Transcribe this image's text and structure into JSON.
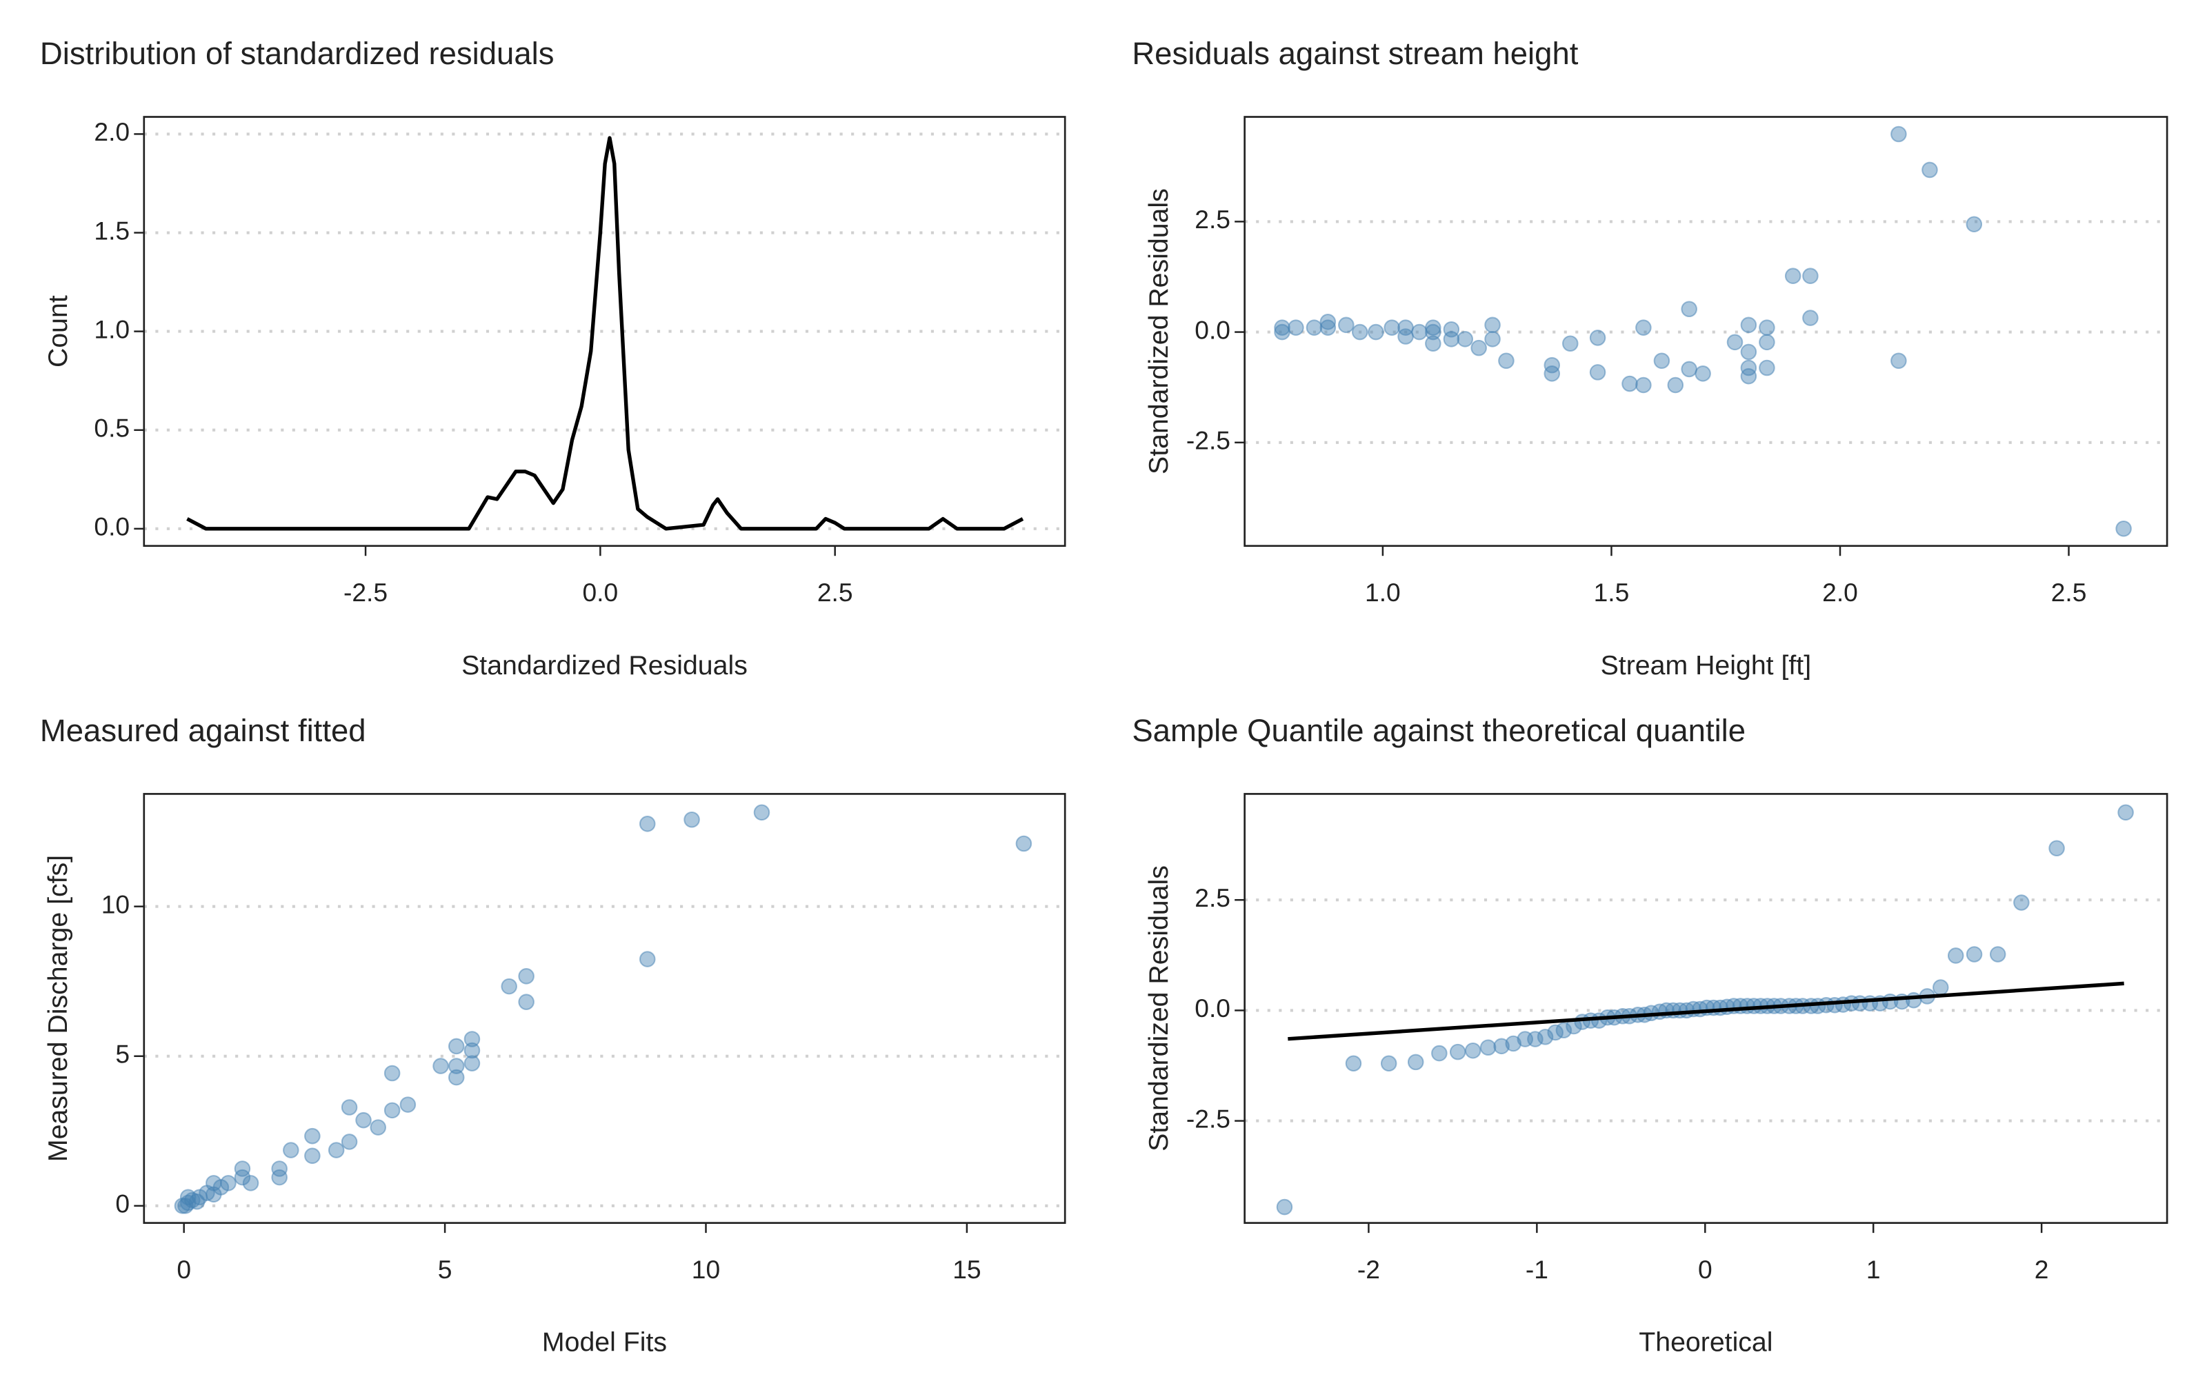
{
  "chart_data": [
    {
      "type": "line",
      "title": "Distribution of standardized residuals",
      "xlabel": "Standardized Residuals",
      "ylabel": "Count",
      "color": "#000000",
      "grid": true,
      "xlim": [
        -4.86,
        4.95
      ],
      "ylim": [
        -0.087,
        2.087
      ],
      "xticks": [
        -2.5,
        {
          "value": 0,
          "label": "0.0"
        },
        2.5
      ],
      "yticks": [
        {
          "value": 0,
          "label": "0.0"
        },
        0.5,
        {
          "value": 1,
          "label": "1.0"
        },
        1.5,
        {
          "value": 2,
          "label": "2.0"
        }
      ],
      "x": [
        -4.4,
        -4.2,
        -4.0,
        -1.4,
        -1.3,
        -1.2,
        -1.1,
        -1.0,
        -0.9,
        -0.8,
        -0.7,
        -0.6,
        -0.5,
        -0.4,
        -0.3,
        -0.2,
        -0.1,
        0.0,
        0.05,
        0.1,
        0.15,
        0.2,
        0.3,
        0.4,
        0.5,
        0.6,
        0.7,
        1.1,
        1.2,
        1.25,
        1.35,
        1.5,
        2.3,
        2.4,
        2.5,
        2.6,
        3.5,
        3.65,
        3.8,
        4.3,
        4.5
      ],
      "y": [
        0.05,
        0.0,
        0.0,
        0.0,
        0.08,
        0.16,
        0.15,
        0.22,
        0.29,
        0.29,
        0.27,
        0.2,
        0.13,
        0.2,
        0.45,
        0.62,
        0.9,
        1.5,
        1.85,
        1.98,
        1.85,
        1.3,
        0.4,
        0.1,
        0.06,
        0.03,
        0.0,
        0.02,
        0.12,
        0.15,
        0.08,
        0.0,
        0.0,
        0.05,
        0.03,
        0.0,
        0.0,
        0.05,
        0.0,
        0.0,
        0.05
      ]
    },
    {
      "type": "scatter",
      "title": "Residuals against stream height",
      "xlabel": "Stream Height [ft]",
      "ylabel": "Standardized Residuals",
      "color": "#4682b4",
      "grid": true,
      "xlim": [
        0.698,
        2.715
      ],
      "ylim": [
        -4.84,
        4.87
      ],
      "xticks": [
        {
          "value": 1,
          "label": "1.0"
        },
        1.5,
        {
          "value": 2,
          "label": "2.0"
        },
        2.5
      ],
      "yticks": [
        -2.5,
        {
          "value": 0,
          "label": "0.0"
        },
        2.5
      ],
      "x": [
        2.128,
        2.196,
        2.293,
        2.62,
        2.128,
        1.935,
        1.897,
        1.935,
        1.8,
        1.84,
        1.8,
        1.84,
        1.8,
        1.8,
        1.84,
        1.77,
        1.67,
        1.67,
        1.7,
        1.64,
        1.61,
        1.57,
        1.54,
        1.57,
        1.47,
        1.47,
        1.41,
        1.37,
        1.37,
        1.27,
        1.24,
        1.24,
        1.21,
        1.18,
        1.15,
        1.15,
        1.11,
        1.11,
        1.11,
        1.08,
        1.05,
        1.05,
        1.02,
        0.985,
        0.95,
        0.92,
        0.88,
        0.88,
        0.85,
        0.81,
        0.78,
        0.78
      ],
      "y": [
        4.48,
        3.67,
        2.44,
        -4.45,
        -0.65,
        0.32,
        1.27,
        1.27,
        0.16,
        0.1,
        -0.45,
        -0.23,
        -0.81,
        -1.0,
        -0.81,
        -0.23,
        0.52,
        -0.84,
        -0.94,
        -1.2,
        -0.65,
        -1.2,
        -1.17,
        0.1,
        -0.13,
        -0.91,
        -0.26,
        -0.75,
        -0.94,
        -0.65,
        0.16,
        -0.16,
        -0.36,
        -0.16,
        0.06,
        -0.16,
        0.1,
        -0.26,
        0.0,
        0.0,
        -0.1,
        0.1,
        0.1,
        0.0,
        0.0,
        0.16,
        0.1,
        0.23,
        0.1,
        0.1,
        0.1,
        0.0
      ]
    },
    {
      "type": "scatter",
      "title": "Measured against fitted",
      "xlabel": "Model Fits",
      "ylabel": "Measured Discharge [cfs]",
      "color": "#4682b4",
      "grid": true,
      "xlim": [
        -0.765,
        16.88
      ],
      "ylim": [
        -0.571,
        13.76
      ],
      "xticks": [
        0,
        5,
        10,
        15
      ],
      "yticks": [
        0,
        5,
        10
      ],
      "x": [
        8.88,
        9.73,
        11.07,
        16.09,
        8.88,
        6.56,
        6.56,
        6.23,
        5.52,
        5.52,
        5.52,
        5.22,
        5.22,
        5.22,
        4.92,
        4.29,
        3.99,
        3.99,
        3.72,
        3.44,
        3.17,
        3.17,
        2.92,
        2.46,
        2.46,
        2.05,
        1.83,
        1.83,
        1.28,
        1.12,
        1.12,
        0.85,
        0.71,
        0.57,
        0.57,
        0.44,
        0.3,
        0.16,
        0.08,
        0.03,
        -0.03,
        0.08,
        0.25
      ],
      "y": [
        12.76,
        12.9,
        13.14,
        12.1,
        8.24,
        7.67,
        6.81,
        7.33,
        5.57,
        5.19,
        4.76,
        5.33,
        4.67,
        4.29,
        4.67,
        3.38,
        4.43,
        3.19,
        2.62,
        2.86,
        3.29,
        2.14,
        1.86,
        2.33,
        1.67,
        1.86,
        1.24,
        0.95,
        0.76,
        1.24,
        0.95,
        0.76,
        0.62,
        0.76,
        0.38,
        0.43,
        0.29,
        0.19,
        0.1,
        0.0,
        0.0,
        0.29,
        0.14
      ]
    },
    {
      "type": "scatter",
      "title": "Sample Quantile against theoretical quantile",
      "xlabel": "Theoretical",
      "ylabel": "Standardized Residuals",
      "color": "#4682b4",
      "grid": true,
      "xlim": [
        -2.737,
        2.746
      ],
      "ylim": [
        -4.81,
        4.9
      ],
      "xticks": [
        -2,
        -1,
        0,
        1,
        2
      ],
      "yticks": [
        -2.5,
        {
          "value": 0,
          "label": "0.0"
        },
        2.5
      ],
      "x": [
        -2.5,
        -2.09,
        -1.88,
        -1.72,
        -1.58,
        -1.47,
        -1.38,
        -1.29,
        -1.21,
        -1.14,
        -1.07,
        -1.01,
        -0.95,
        -0.89,
        -0.84,
        -0.78,
        -0.73,
        -0.68,
        -0.63,
        -0.58,
        -0.54,
        -0.49,
        -0.45,
        -0.4,
        -0.36,
        -0.32,
        -0.27,
        -0.23,
        -0.19,
        -0.15,
        -0.11,
        -0.07,
        -0.03,
        0.01,
        0.05,
        0.09,
        0.13,
        0.17,
        0.21,
        0.25,
        0.29,
        0.33,
        0.37,
        0.41,
        0.45,
        0.5,
        0.54,
        0.58,
        0.63,
        0.67,
        0.72,
        0.77,
        0.82,
        0.87,
        0.92,
        0.98,
        1.04,
        1.1,
        1.17,
        1.24,
        1.32,
        1.4,
        1.49,
        1.6,
        1.74,
        1.88,
        2.09,
        2.5
      ],
      "y": [
        -4.45,
        -1.2,
        -1.2,
        -1.17,
        -0.97,
        -0.94,
        -0.91,
        -0.84,
        -0.81,
        -0.75,
        -0.65,
        -0.65,
        -0.6,
        -0.5,
        -0.45,
        -0.36,
        -0.26,
        -0.23,
        -0.23,
        -0.16,
        -0.16,
        -0.13,
        -0.13,
        -0.1,
        -0.1,
        -0.06,
        -0.03,
        0,
        0,
        0,
        0,
        0.03,
        0.03,
        0.06,
        0.06,
        0.06,
        0.08,
        0.1,
        0.1,
        0.1,
        0.1,
        0.1,
        0.1,
        0.1,
        0.1,
        0.1,
        0.1,
        0.1,
        0.1,
        0.1,
        0.12,
        0.12,
        0.13,
        0.16,
        0.16,
        0.16,
        0.16,
        0.2,
        0.2,
        0.23,
        0.32,
        0.52,
        1.24,
        1.27,
        1.27,
        2.44,
        3.67,
        4.48
      ],
      "reference_line": {
        "color": "#000000",
        "x": [
          -2.48,
          2.49
        ],
        "y": [
          -0.645,
          0.61
        ]
      }
    }
  ]
}
